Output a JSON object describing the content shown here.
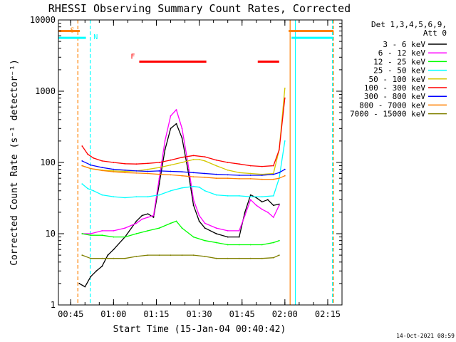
{
  "chart_data": {
    "type": "line",
    "title": "RHESSI Observing Summary Count Rates, Corrected",
    "xlabel": "Start Time (15-Jan-04 00:40:42)",
    "ylabel": "Corrected Count Rate (s⁻¹ detector⁻¹)",
    "x_unit": "UT time",
    "xlim": [
      "00:40:42",
      "02:20:00"
    ],
    "x_ticks": [
      "00:45",
      "01:00",
      "01:15",
      "01:30",
      "01:45",
      "02:00",
      "02:15"
    ],
    "y_scale": "log",
    "ylim": [
      1,
      10000
    ],
    "y_ticks": [
      1,
      10,
      100,
      1000,
      10000
    ],
    "legend_title": [
      "Det 1,3,4,5,6,9,",
      "Att 0"
    ],
    "legend_position": "right",
    "series": [
      {
        "name": "3 - 6 keV",
        "color": "#000000",
        "points": [
          [
            "00:48:00",
            2
          ],
          [
            "00:50:00",
            1.8
          ],
          [
            "00:52:00",
            2.5
          ],
          [
            "00:54:00",
            3
          ],
          [
            "00:56:00",
            3.5
          ],
          [
            "00:58:00",
            5
          ],
          [
            "01:00:00",
            6
          ],
          [
            "01:04:00",
            9
          ],
          [
            "01:08:00",
            15
          ],
          [
            "01:10:00",
            18
          ],
          [
            "01:12:00",
            19
          ],
          [
            "01:14:00",
            17
          ],
          [
            "01:16:00",
            50
          ],
          [
            "01:18:00",
            150
          ],
          [
            "01:20:00",
            300
          ],
          [
            "01:22:00",
            350
          ],
          [
            "01:24:00",
            220
          ],
          [
            "01:26:00",
            80
          ],
          [
            "01:28:00",
            25
          ],
          [
            "01:30:00",
            15
          ],
          [
            "01:32:00",
            12
          ],
          [
            "01:36:00",
            10
          ],
          [
            "01:40:00",
            9
          ],
          [
            "01:44:00",
            9
          ],
          [
            "01:46:00",
            20
          ],
          [
            "01:48:00",
            35
          ],
          [
            "01:50:00",
            32
          ],
          [
            "01:52:00",
            28
          ],
          [
            "01:54:00",
            30
          ],
          [
            "01:56:00",
            25
          ],
          [
            "01:58:00",
            26
          ]
        ]
      },
      {
        "name": "6 - 12 keV",
        "color": "#ff00ff",
        "points": [
          [
            "00:49:00",
            10
          ],
          [
            "00:52:00",
            10
          ],
          [
            "00:56:00",
            11
          ],
          [
            "01:00:00",
            11
          ],
          [
            "01:04:00",
            12
          ],
          [
            "01:08:00",
            14
          ],
          [
            "01:10:00",
            16
          ],
          [
            "01:12:00",
            17
          ],
          [
            "01:14:00",
            18
          ],
          [
            "01:16:00",
            60
          ],
          [
            "01:18:00",
            200
          ],
          [
            "01:20:00",
            450
          ],
          [
            "01:22:00",
            550
          ],
          [
            "01:24:00",
            300
          ],
          [
            "01:26:00",
            100
          ],
          [
            "01:28:00",
            30
          ],
          [
            "01:30:00",
            18
          ],
          [
            "01:32:00",
            14
          ],
          [
            "01:36:00",
            12
          ],
          [
            "01:40:00",
            11
          ],
          [
            "01:44:00",
            11
          ],
          [
            "01:46:00",
            18
          ],
          [
            "01:48:00",
            30
          ],
          [
            "01:50:00",
            25
          ],
          [
            "01:52:00",
            22
          ],
          [
            "01:54:00",
            20
          ],
          [
            "01:56:00",
            17
          ],
          [
            "01:58:00",
            25
          ]
        ]
      },
      {
        "name": "12 - 25 keV",
        "color": "#00ff00",
        "points": [
          [
            "00:49:00",
            10
          ],
          [
            "00:52:00",
            9.5
          ],
          [
            "00:56:00",
            9.5
          ],
          [
            "01:00:00",
            9
          ],
          [
            "01:04:00",
            9
          ],
          [
            "01:08:00",
            10
          ],
          [
            "01:12:00",
            11
          ],
          [
            "01:16:00",
            12
          ],
          [
            "01:20:00",
            14
          ],
          [
            "01:22:00",
            15
          ],
          [
            "01:24:00",
            12
          ],
          [
            "01:28:00",
            9
          ],
          [
            "01:32:00",
            8
          ],
          [
            "01:36:00",
            7.5
          ],
          [
            "01:40:00",
            7
          ],
          [
            "01:44:00",
            7
          ],
          [
            "01:48:00",
            7
          ],
          [
            "01:52:00",
            7
          ],
          [
            "01:56:00",
            7.5
          ],
          [
            "01:58:00",
            8
          ]
        ]
      },
      {
        "name": "25 - 50 keV",
        "color": "#00ffff",
        "points": [
          [
            "00:49:00",
            50
          ],
          [
            "00:51:00",
            43
          ],
          [
            "00:53:00",
            40
          ],
          [
            "00:56:00",
            35
          ],
          [
            "01:00:00",
            33
          ],
          [
            "01:04:00",
            32
          ],
          [
            "01:08:00",
            33
          ],
          [
            "01:12:00",
            33
          ],
          [
            "01:16:00",
            35
          ],
          [
            "01:20:00",
            40
          ],
          [
            "01:24:00",
            44
          ],
          [
            "01:28:00",
            46
          ],
          [
            "01:30:00",
            45
          ],
          [
            "01:32:00",
            40
          ],
          [
            "01:36:00",
            35
          ],
          [
            "01:40:00",
            34
          ],
          [
            "01:44:00",
            34
          ],
          [
            "01:48:00",
            33
          ],
          [
            "01:52:00",
            33
          ],
          [
            "01:56:00",
            34
          ],
          [
            "01:58:00",
            60
          ],
          [
            "02:00:00",
            200
          ]
        ]
      },
      {
        "name": "50 - 100 keV",
        "color": "#d4c800",
        "points": [
          [
            "00:49:00",
            90
          ],
          [
            "00:52:00",
            82
          ],
          [
            "00:56:00",
            78
          ],
          [
            "01:00:00",
            76
          ],
          [
            "01:04:00",
            75
          ],
          [
            "01:08:00",
            76
          ],
          [
            "01:12:00",
            80
          ],
          [
            "01:16:00",
            85
          ],
          [
            "01:20:00",
            92
          ],
          [
            "01:24:00",
            100
          ],
          [
            "01:28:00",
            110
          ],
          [
            "01:30:00",
            110
          ],
          [
            "01:32:00",
            105
          ],
          [
            "01:36:00",
            90
          ],
          [
            "01:40:00",
            78
          ],
          [
            "01:44:00",
            72
          ],
          [
            "01:48:00",
            70
          ],
          [
            "01:52:00",
            68
          ],
          [
            "01:56:00",
            70
          ],
          [
            "01:58:00",
            150
          ],
          [
            "02:00:00",
            1100
          ]
        ]
      },
      {
        "name": "100 - 300 keV",
        "color": "#ff0000",
        "points": [
          [
            "00:49:00",
            170
          ],
          [
            "00:51:00",
            130
          ],
          [
            "00:53:00",
            115
          ],
          [
            "00:56:00",
            105
          ],
          [
            "01:00:00",
            100
          ],
          [
            "01:04:00",
            96
          ],
          [
            "01:08:00",
            95
          ],
          [
            "01:12:00",
            97
          ],
          [
            "01:16:00",
            100
          ],
          [
            "01:20:00",
            108
          ],
          [
            "01:24:00",
            118
          ],
          [
            "01:28:00",
            125
          ],
          [
            "01:32:00",
            120
          ],
          [
            "01:36:00",
            108
          ],
          [
            "01:40:00",
            100
          ],
          [
            "01:44:00",
            95
          ],
          [
            "01:48:00",
            90
          ],
          [
            "01:52:00",
            88
          ],
          [
            "01:56:00",
            90
          ],
          [
            "01:58:00",
            150
          ],
          [
            "02:00:00",
            800
          ]
        ]
      },
      {
        "name": "300 - 800 keV",
        "color": "#0000ff",
        "points": [
          [
            "00:49:00",
            105
          ],
          [
            "00:52:00",
            92
          ],
          [
            "00:56:00",
            85
          ],
          [
            "01:00:00",
            80
          ],
          [
            "01:04:00",
            78
          ],
          [
            "01:08:00",
            76
          ],
          [
            "01:12:00",
            75
          ],
          [
            "01:16:00",
            76
          ],
          [
            "01:20:00",
            75
          ],
          [
            "01:24:00",
            74
          ],
          [
            "01:28:00",
            72
          ],
          [
            "01:32:00",
            70
          ],
          [
            "01:36:00",
            68
          ],
          [
            "01:40:00",
            67
          ],
          [
            "01:44:00",
            66
          ],
          [
            "01:48:00",
            66
          ],
          [
            "01:52:00",
            66
          ],
          [
            "01:56:00",
            68
          ],
          [
            "01:58:00",
            72
          ],
          [
            "02:00:00",
            80
          ]
        ]
      },
      {
        "name": "800 - 7000 keV",
        "color": "#ff8000",
        "points": [
          [
            "00:49:00",
            90
          ],
          [
            "00:52:00",
            82
          ],
          [
            "00:56:00",
            77
          ],
          [
            "01:00:00",
            74
          ],
          [
            "01:04:00",
            72
          ],
          [
            "01:08:00",
            71
          ],
          [
            "01:12:00",
            70
          ],
          [
            "01:16:00",
            68
          ],
          [
            "01:20:00",
            67
          ],
          [
            "01:24:00",
            65
          ],
          [
            "01:28:00",
            63
          ],
          [
            "01:32:00",
            62
          ],
          [
            "01:36:00",
            60
          ],
          [
            "01:40:00",
            60
          ],
          [
            "01:44:00",
            59
          ],
          [
            "01:48:00",
            59
          ],
          [
            "01:52:00",
            58
          ],
          [
            "01:56:00",
            58
          ],
          [
            "01:58:00",
            60
          ],
          [
            "02:00:00",
            65
          ]
        ]
      },
      {
        "name": "7000 - 15000 keV",
        "color": "#808000",
        "points": [
          [
            "00:49:00",
            5
          ],
          [
            "00:52:00",
            4.5
          ],
          [
            "00:56:00",
            4.5
          ],
          [
            "01:00:00",
            4.5
          ],
          [
            "01:04:00",
            4.5
          ],
          [
            "01:08:00",
            4.8
          ],
          [
            "01:12:00",
            5
          ],
          [
            "01:16:00",
            5
          ],
          [
            "01:20:00",
            5
          ],
          [
            "01:24:00",
            5
          ],
          [
            "01:28:00",
            5
          ],
          [
            "01:32:00",
            4.8
          ],
          [
            "01:36:00",
            4.5
          ],
          [
            "01:40:00",
            4.5
          ],
          [
            "01:44:00",
            4.5
          ],
          [
            "01:48:00",
            4.5
          ],
          [
            "01:52:00",
            4.5
          ],
          [
            "01:56:00",
            4.6
          ],
          [
            "01:58:00",
            5
          ]
        ]
      }
    ],
    "flags": [
      {
        "label": "S",
        "color": "#ff8000",
        "level": 7000,
        "segments": [
          [
            "00:40:42",
            "00:48:10"
          ],
          [
            "02:01:20",
            "02:17:00"
          ]
        ]
      },
      {
        "label": "N",
        "color": "#00ffff",
        "level": 5600,
        "segments": [
          [
            "00:40:42",
            "00:50:20"
          ],
          [
            "02:02:20",
            "02:17:00"
          ]
        ]
      },
      {
        "label": "F",
        "color": "#ff0000",
        "level": 2600,
        "segments": [
          [
            "01:09:00",
            "01:32:30"
          ],
          [
            "01:50:30",
            "01:58:00"
          ]
        ]
      }
    ],
    "vlines": [
      {
        "time": "00:47:30",
        "color": "#ff8000",
        "style": "dashed"
      },
      {
        "time": "00:51:50",
        "color": "#00ffff",
        "style": "dashed"
      },
      {
        "time": "02:01:50",
        "color": "#ff8000",
        "style": "solid"
      },
      {
        "time": "02:03:40",
        "color": "#00ffff",
        "style": "solid"
      },
      {
        "time": "02:16:40",
        "color": "#00ffff",
        "style": "dashed"
      },
      {
        "time": "02:17:00",
        "color": "#ff8000",
        "style": "dashed"
      }
    ]
  },
  "timestamp": "14-Oct-2021 08:59"
}
